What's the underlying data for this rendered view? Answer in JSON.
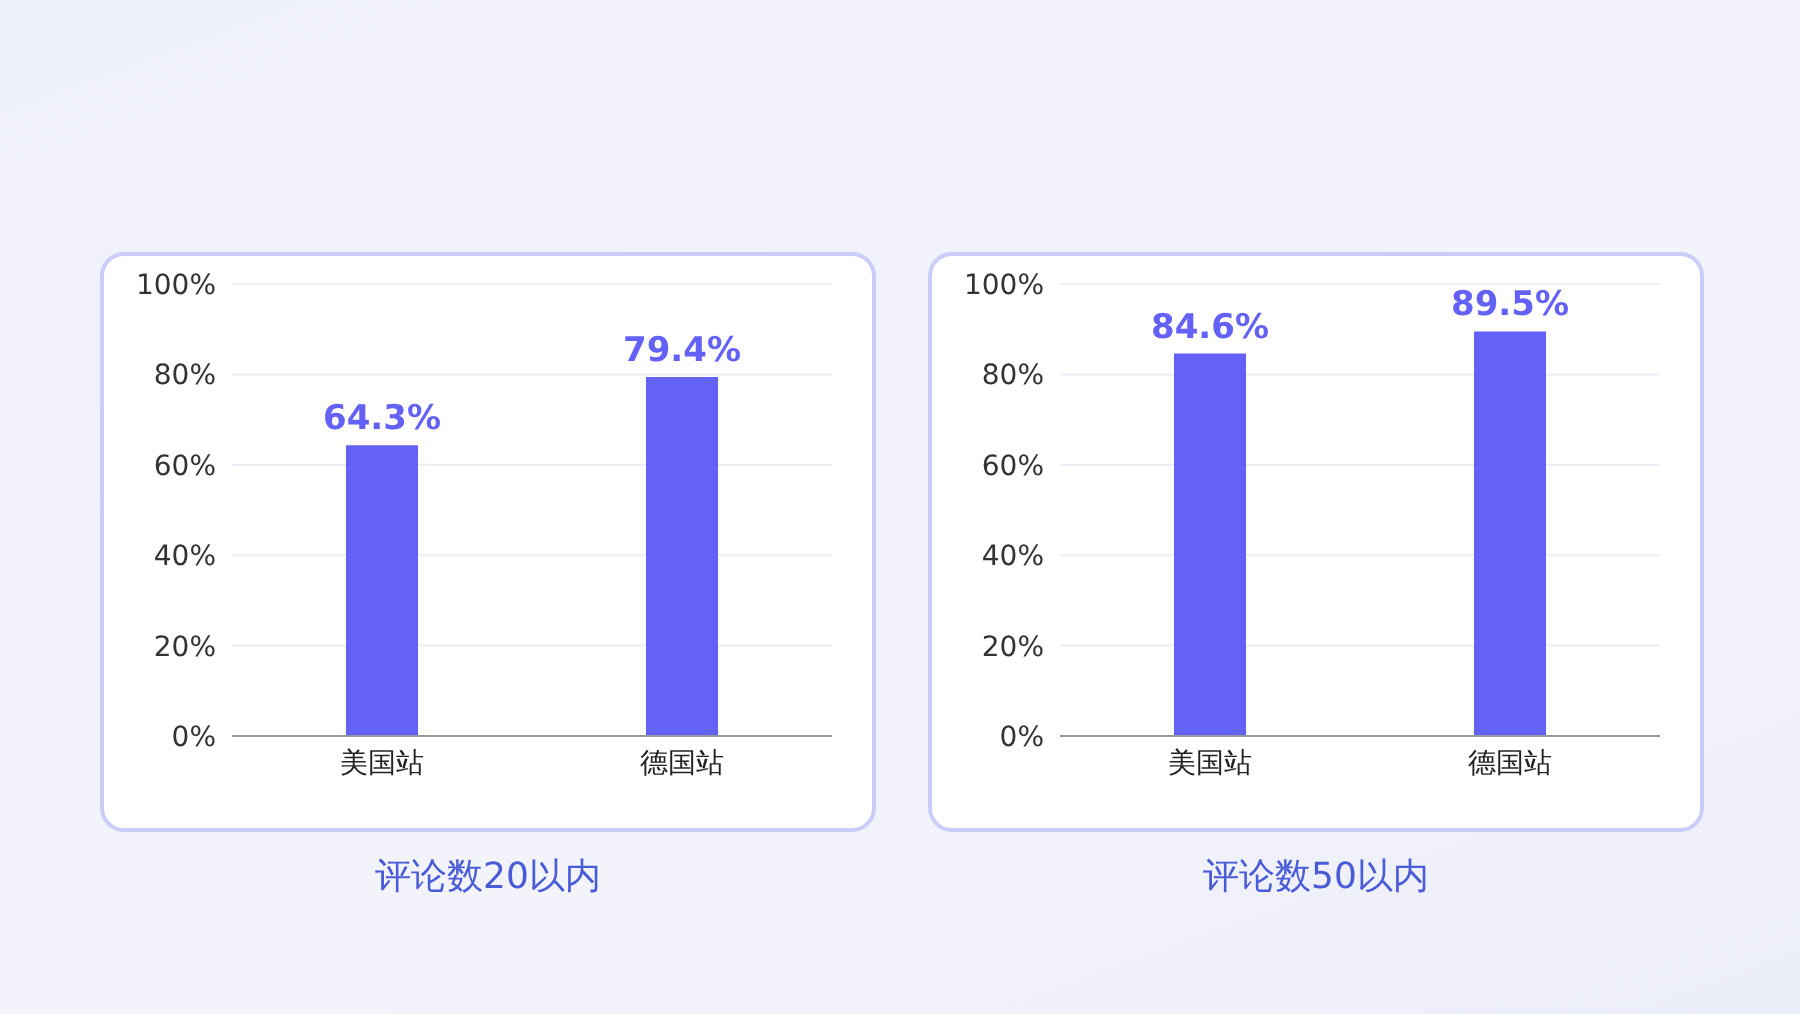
{
  "chart_data": [
    {
      "type": "bar",
      "title": "评论数20以内",
      "categories": [
        "美国站",
        "德国站"
      ],
      "values": [
        64.3,
        79.4
      ],
      "value_labels": [
        "64.3%",
        "79.4%"
      ],
      "color": "#6461f6",
      "ylim": [
        0,
        100
      ],
      "yticks": [
        {
          "value": 0,
          "label": "0%"
        },
        {
          "value": 20,
          "label": "20%"
        },
        {
          "value": 40,
          "label": "40%"
        },
        {
          "value": 60,
          "label": "60%"
        },
        {
          "value": 80,
          "label": "80%"
        },
        {
          "value": 100,
          "label": "100%"
        }
      ],
      "grid": "y",
      "legend": false
    },
    {
      "type": "bar",
      "title": "评论数50以内",
      "categories": [
        "美国站",
        "德国站"
      ],
      "values": [
        84.6,
        89.5
      ],
      "value_labels": [
        "84.6%",
        "89.5%"
      ],
      "color": "#6461f6",
      "ylim": [
        0,
        100
      ],
      "yticks": [
        {
          "value": 0,
          "label": "0%"
        },
        {
          "value": 20,
          "label": "20%"
        },
        {
          "value": 40,
          "label": "40%"
        },
        {
          "value": 60,
          "label": "60%"
        },
        {
          "value": 80,
          "label": "80%"
        },
        {
          "value": 100,
          "label": "100%"
        }
      ],
      "grid": "y",
      "legend": false
    }
  ]
}
